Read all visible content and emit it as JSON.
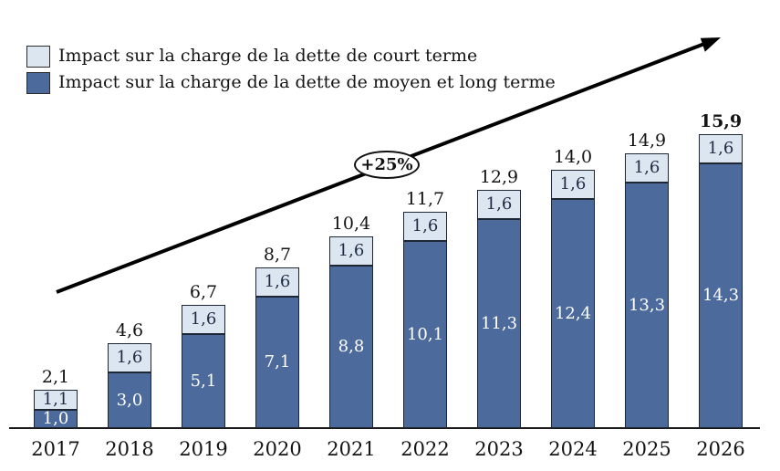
{
  "chart_data": {
    "type": "bar",
    "stacked": true,
    "title": "",
    "xlabel": "",
    "ylabel": "",
    "grid": false,
    "legend_position": "top-left",
    "ylim": [
      0,
      17
    ],
    "categories": [
      "2017",
      "2018",
      "2019",
      "2020",
      "2021",
      "2022",
      "2023",
      "2024",
      "2025",
      "2026"
    ],
    "series": [
      {
        "key": "moyen-long-terme",
        "name": "Impact sur la charge de la dette de moyen et long terme",
        "color": "#4c6b9c",
        "label_color": "#ffffff",
        "values": [
          1.0,
          3.0,
          5.1,
          7.1,
          8.8,
          10.1,
          11.3,
          12.4,
          13.3,
          14.3
        ],
        "value_labels": [
          "1,0",
          "3,0",
          "5,1",
          "7,1",
          "8,8",
          "10,1",
          "11,3",
          "12,4",
          "13,3",
          "14,3"
        ]
      },
      {
        "key": "court-terme",
        "name": "Impact sur la charge de la dette de court terme",
        "color": "#dce6f1",
        "label_color": "#1f2a44",
        "values": [
          1.1,
          1.6,
          1.6,
          1.6,
          1.6,
          1.6,
          1.6,
          1.6,
          1.6,
          1.6
        ],
        "value_labels": [
          "1,1",
          "1,6",
          "1,6",
          "1,6",
          "1,6",
          "1,6",
          "1,6",
          "1,6",
          "1,6",
          "1,6"
        ]
      }
    ],
    "totals": [
      2.1,
      4.6,
      6.7,
      8.7,
      10.4,
      11.7,
      12.9,
      14.0,
      14.9,
      15.9
    ],
    "total_labels": [
      "2,1",
      "4,6",
      "6,7",
      "8,7",
      "10,4",
      "11,7",
      "12,9",
      "14,0",
      "14,9",
      "15,9"
    ],
    "bold_last_total": true,
    "annotation": {
      "label": "+25%"
    }
  },
  "legend": {
    "items": [
      {
        "label": "Impact sur la charge de la dette de court terme",
        "color": "#dce6f1"
      },
      {
        "label": "Impact sur la charge de la dette de moyen et long terme",
        "color": "#4c6b9c"
      }
    ]
  }
}
